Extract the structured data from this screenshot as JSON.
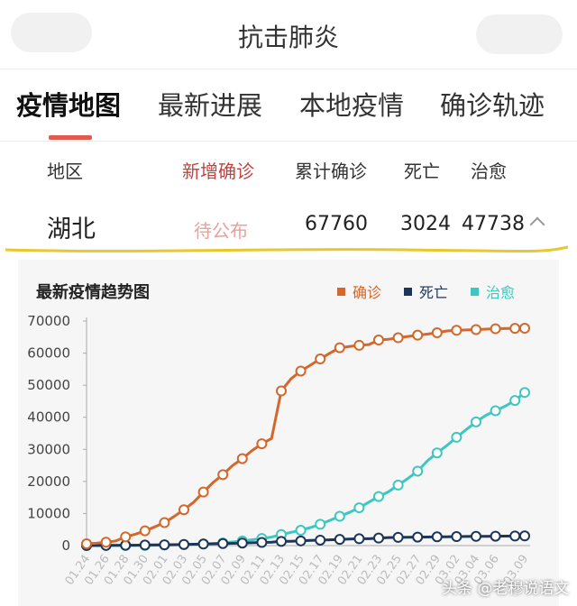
{
  "header": {
    "title": "抗击肺炎"
  },
  "tabs": [
    {
      "label": "疫情地图",
      "active": true
    },
    {
      "label": "最新进展",
      "active": false
    },
    {
      "label": "本地疫情",
      "active": false
    },
    {
      "label": "确诊轨迹",
      "active": false
    }
  ],
  "table": {
    "headers": [
      "地区",
      "新增确诊",
      "累计确诊",
      "死亡",
      "治愈"
    ],
    "row": {
      "region": "湖北",
      "new_confirmed": "待公布",
      "total_confirmed": "67760",
      "deaths": "3024",
      "cured": "47738"
    }
  },
  "chart_title": "最新疫情趋势图",
  "colors": {
    "accent": "#e05a4f",
    "confirmed": "#d4672b",
    "deaths": "#1d3557",
    "cured": "#3cc8c0",
    "annotation": "#e6c830"
  },
  "watermark": "头条 @老穆说语文",
  "chart_data": {
    "type": "line",
    "title": "最新疫情趋势图",
    "x": [
      "01.24",
      "01.25",
      "01.26",
      "01.27",
      "01.28",
      "01.29",
      "01.30",
      "01.31",
      "02.01",
      "02.02",
      "02.03",
      "02.04",
      "02.05",
      "02.06",
      "02.07",
      "02.08",
      "02.09",
      "02.10",
      "02.11",
      "02.12",
      "02.13",
      "02.14",
      "02.15",
      "02.16",
      "02.17",
      "02.18",
      "02.19",
      "02.20",
      "02.21",
      "02.22",
      "02.23",
      "02.24",
      "02.25",
      "02.26",
      "02.27",
      "02.28",
      "02.29",
      "03.01",
      "03.02",
      "03.03",
      "03.04",
      "03.05",
      "03.06",
      "03.07",
      "03.08",
      "03.09"
    ],
    "xticks": [
      "01.24",
      "01.26",
      "01.28",
      "01.30",
      "02.01",
      "02.03",
      "02.05",
      "02.07",
      "02.09",
      "02.11",
      "02.13",
      "02.15",
      "02.17",
      "02.19",
      "02.21",
      "02.23",
      "02.25",
      "02.27",
      "02.29",
      "03.02",
      "03.04",
      "03.06",
      "03.09"
    ],
    "yticks": [
      0,
      10000,
      20000,
      30000,
      40000,
      50000,
      60000,
      70000
    ],
    "ylim": [
      0,
      70000
    ],
    "series": [
      {
        "name": "确诊",
        "color": "#d4672b",
        "values": [
          549,
          729,
          1052,
          1423,
          2714,
          3554,
          4586,
          5806,
          7153,
          9074,
          11177,
          13522,
          16678,
          19665,
          22112,
          24953,
          27100,
          29631,
          31728,
          33366,
          48206,
          51986,
          54406,
          56249,
          58182,
          59989,
          61682,
          62031,
          62442,
          62662,
          64084,
          64287,
          64786,
          65187,
          65596,
          65914,
          66337,
          66907,
          67103,
          67217,
          67332,
          67466,
          67592,
          67666,
          67707,
          67743
        ]
      },
      {
        "name": "死亡",
        "color": "#1d3557",
        "values": [
          24,
          39,
          52,
          76,
          100,
          125,
          162,
          204,
          249,
          294,
          350,
          414,
          479,
          549,
          618,
          699,
          780,
          871,
          974,
          1068,
          1310,
          1318,
          1457,
          1596,
          1696,
          1789,
          1921,
          2029,
          2144,
          2144,
          2346,
          2495,
          2563,
          2615,
          2641,
          2682,
          2727,
          2761,
          2803,
          2835,
          2871,
          2902,
          2931,
          2959,
          2986,
          3007
        ]
      },
      {
        "name": "治愈",
        "color": "#3cc8c0",
        "values": [
          28,
          32,
          42,
          44,
          47,
          58,
          80,
          116,
          166,
          215,
          295,
          396,
          520,
          633,
          817,
          1115,
          1439,
          1795,
          2222,
          2639,
          3441,
          4131,
          4774,
          5623,
          6639,
          7862,
          9128,
          10337,
          11788,
          13557,
          15299,
          16748,
          18854,
          20912,
          23200,
          26403,
          28895,
          31187,
          33757,
          36167,
          38556,
          40592,
          42033,
          43468,
          45235,
          47738
        ]
      }
    ]
  }
}
